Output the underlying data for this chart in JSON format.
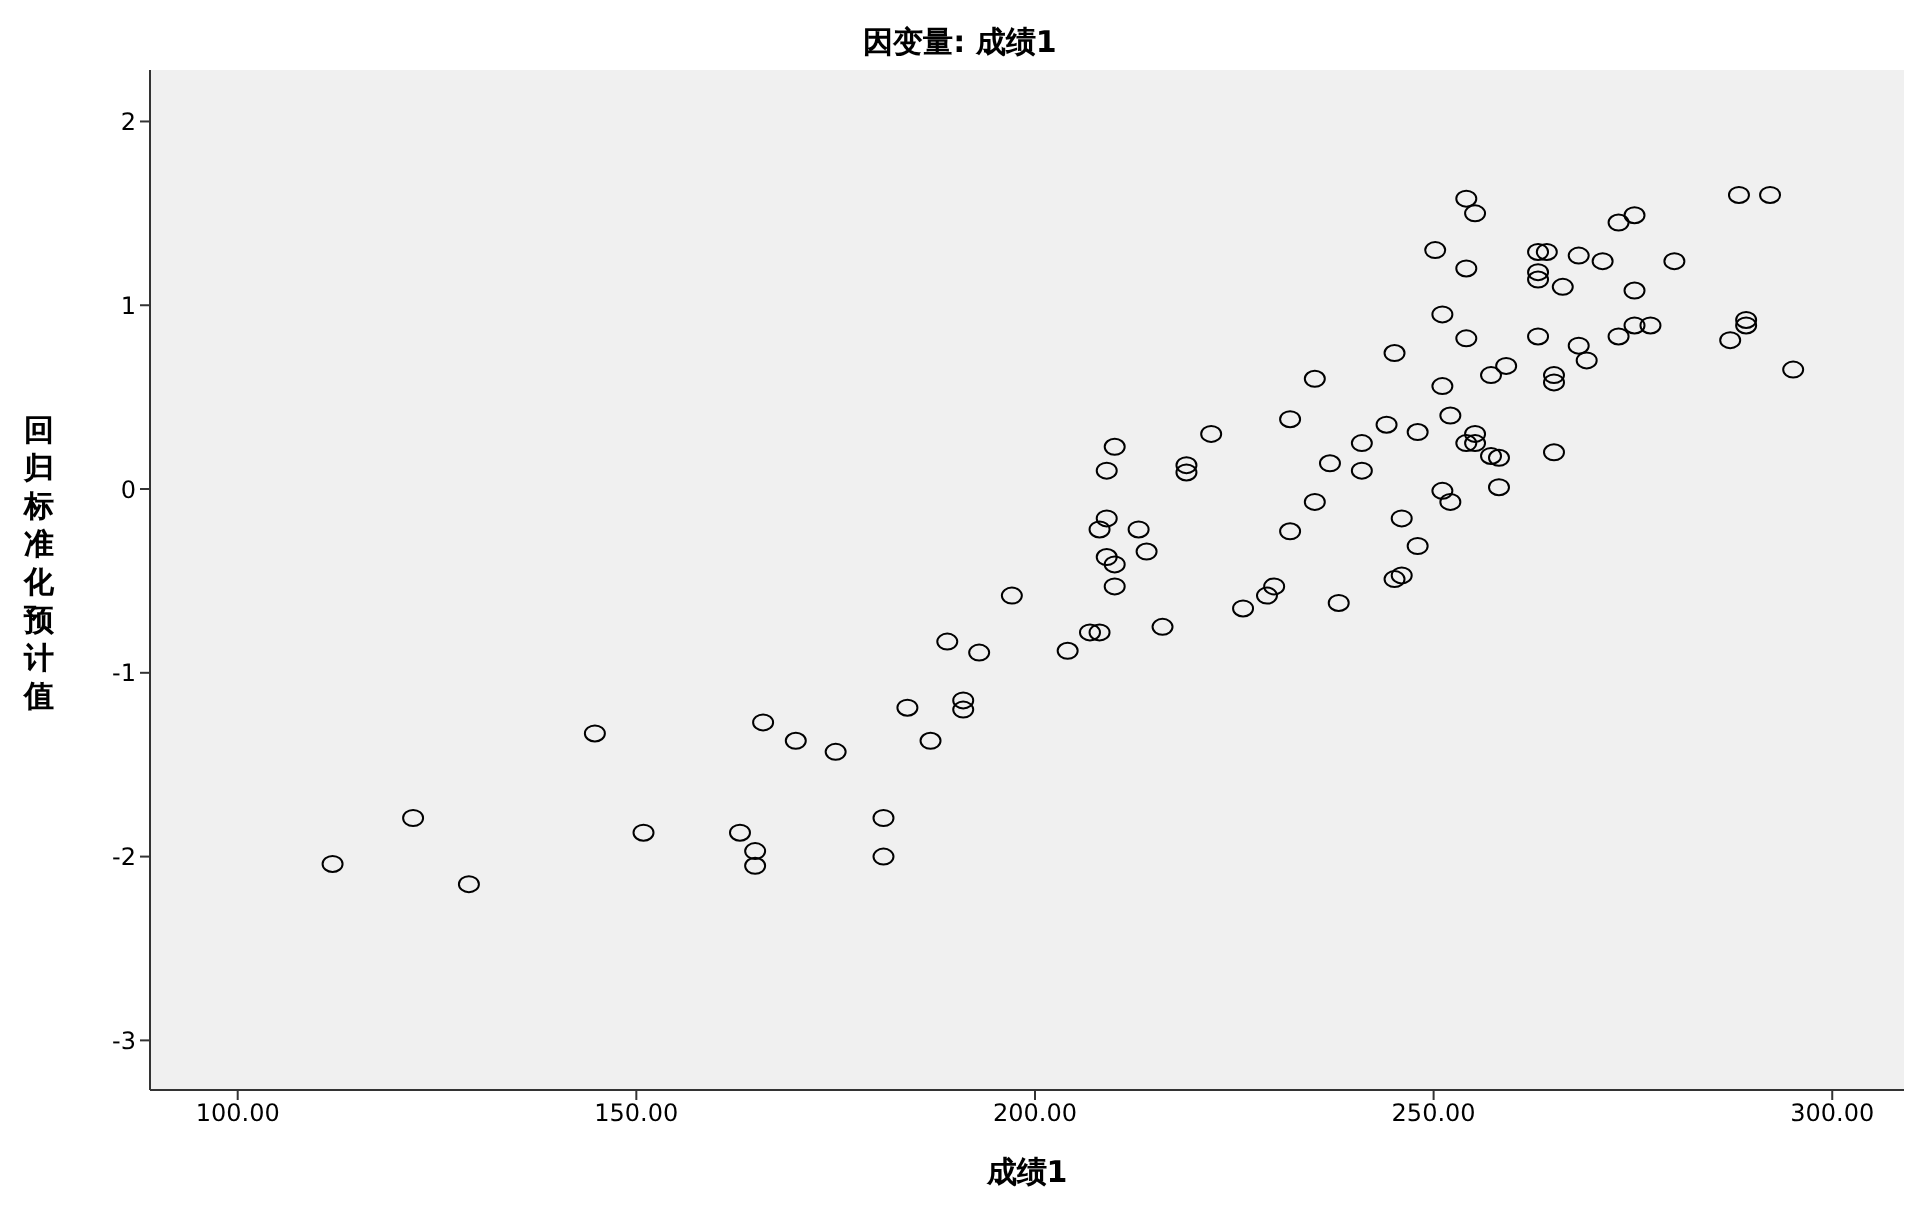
{
  "chart_data": {
    "type": "scatter",
    "title": "因变量: 成绩1",
    "xlabel": "成绩1",
    "ylabel": "回归标准化预计值",
    "x": [
      111.9,
      122,
      129,
      144.8,
      150.9,
      163,
      164.9,
      164.9,
      165.9,
      170,
      175,
      181,
      181,
      184,
      186.9,
      189,
      191,
      191,
      193,
      197.1,
      204.1,
      206.9,
      208.1,
      208.1,
      209,
      209,
      210,
      210,
      209,
      210,
      213,
      214,
      216,
      219,
      219,
      222.1,
      226.1,
      229.1,
      230,
      232,
      232,
      235.1,
      235.1,
      237,
      238.1,
      241,
      241,
      244.1,
      245.1,
      245.1,
      246,
      246,
      248,
      248,
      250.2,
      251.1,
      251.1,
      251.1,
      252.1,
      252.1,
      254.1,
      255.2,
      254.1,
      254.1,
      254.1,
      255.2,
      255.2,
      257.2,
      257.2,
      258.2,
      258.2,
      259.1,
      263.1,
      264.2,
      263.1,
      263.1,
      263.1,
      265.1,
      265.1,
      265.1,
      266.2,
      268.2,
      268.2,
      269.2,
      271.2,
      273.2,
      275.2,
      275.2,
      273.2,
      275.2,
      277.2,
      280.2,
      287.2,
      288.3,
      289.2,
      289.2,
      292.2,
      295.1
    ],
    "series": [
      {
        "color": "#000000",
        "values": [
          -2.04,
          -1.79,
          -2.15,
          -1.33,
          -1.87,
          -1.87,
          -1.97,
          -2.05,
          -1.27,
          -1.37,
          -1.43,
          -1.79,
          -2.0,
          -1.19,
          -1.37,
          -0.83,
          -1.15,
          -1.2,
          -0.89,
          -0.58,
          -0.88,
          -0.78,
          -0.78,
          -0.22,
          -0.16,
          -0.37,
          -0.41,
          -0.53,
          0.1,
          0.23,
          -0.22,
          -0.34,
          -0.75,
          0.13,
          0.09,
          0.3,
          -0.65,
          -0.58,
          -0.53,
          0.38,
          -0.23,
          0.6,
          -0.07,
          0.14,
          -0.62,
          0.25,
          0.1,
          0.35,
          0.74,
          -0.49,
          -0.47,
          -0.16,
          0.31,
          -0.31,
          1.3,
          0.95,
          0.56,
          -0.01,
          -0.07,
          0.4,
          1.58,
          1.5,
          1.2,
          0.82,
          0.25,
          0.3,
          0.25,
          0.62,
          0.18,
          0.17,
          0.01,
          0.67,
          1.29,
          1.29,
          1.18,
          1.14,
          0.83,
          0.62,
          0.58,
          0.2,
          1.1,
          1.27,
          0.78,
          0.7,
          1.24,
          1.45,
          1.49,
          1.08,
          0.83,
          0.89,
          0.89,
          1.24,
          0.81,
          1.6,
          0.92,
          0.89,
          1.6,
          0.65
        ]
      }
    ],
    "xlim": [
      89,
      309
    ],
    "xticks": [
      {
        "value": 100,
        "label": "100.00"
      },
      {
        "value": 150,
        "label": "150.00"
      },
      {
        "value": 200,
        "label": "200.00"
      },
      {
        "value": 250,
        "label": "250.00"
      },
      {
        "value": 300,
        "label": "300.00"
      }
    ],
    "ylim": [
      -3.27,
      2.28
    ],
    "yticks": [
      -3,
      -2,
      -1,
      0,
      1,
      2
    ],
    "marker": "circle"
  }
}
